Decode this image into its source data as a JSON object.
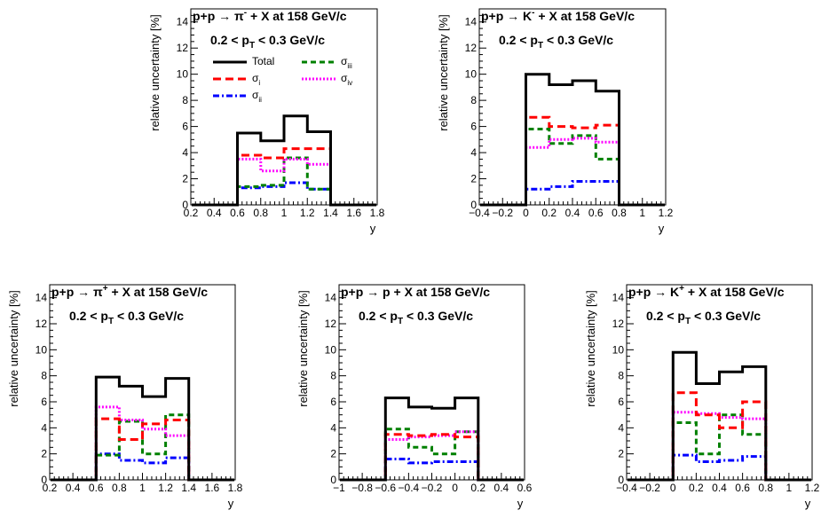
{
  "legend": {
    "total": "Total",
    "sigma_i": "σ_i",
    "sigma_ii": "σ_ii",
    "sigma_iii": "σ_iii",
    "sigma_iv": "σ_iv"
  },
  "colors": {
    "total": "#000000",
    "sigma_i": "#ff0000",
    "sigma_ii": "#0000ff",
    "sigma_iii": "#008000",
    "sigma_iv": "#ff00ff"
  },
  "chart_data": [
    {
      "type": "step",
      "title_parts": {
        "pre": "p+p  → π",
        "sup": "-",
        "post": " + X at 158 GeV/c"
      },
      "subtitle_parts": {
        "pre": "0.2 < p",
        "sub": "T",
        "post": " < 0.3  GeV/c"
      },
      "xlabel": "y",
      "ylabel": "relative uncertainty [%]",
      "xlim": [
        0.2,
        1.8
      ],
      "ylim": [
        0,
        15
      ],
      "xticks": [
        0.2,
        0.4,
        0.6,
        0.8,
        1,
        1.2,
        1.4,
        1.6,
        1.8
      ],
      "xtick_labels": [
        "0.2",
        "0.4",
        "0.6",
        "0.8",
        "1",
        "1.2",
        "1.4",
        "1.6",
        "1.8"
      ],
      "yticks": [
        0,
        2,
        4,
        6,
        8,
        10,
        12,
        14
      ],
      "ytick_labels": [
        "0",
        "2",
        "4",
        "6",
        "8",
        "10",
        "12",
        "14"
      ],
      "bin_edges": [
        0.6,
        0.8,
        1.0,
        1.2,
        1.4
      ],
      "legend_shown": true,
      "series": [
        {
          "key": "total",
          "values": [
            5.5,
            4.9,
            6.8,
            5.6
          ]
        },
        {
          "key": "sigma_i",
          "values": [
            3.8,
            3.6,
            4.3,
            4.3
          ]
        },
        {
          "key": "sigma_ii",
          "values": [
            1.3,
            1.4,
            1.7,
            1.2
          ]
        },
        {
          "key": "sigma_iii",
          "values": [
            1.4,
            1.5,
            3.6,
            1.2
          ]
        },
        {
          "key": "sigma_iv",
          "values": [
            3.5,
            2.6,
            3.5,
            3.1
          ]
        }
      ]
    },
    {
      "type": "step",
      "title_parts": {
        "pre": "p+p  → K",
        "sup": "-",
        "post": " + X at 158 GeV/c"
      },
      "subtitle_parts": {
        "pre": "0.2 < p",
        "sub": "T",
        "post": " < 0.3  GeV/c"
      },
      "xlabel": "y",
      "ylabel": "relative uncertainty [%]",
      "xlim": [
        -0.4,
        1.2
      ],
      "ylim": [
        0,
        15
      ],
      "xticks": [
        -0.4,
        -0.2,
        0,
        0.2,
        0.4,
        0.6,
        0.8,
        1,
        1.2
      ],
      "xtick_labels": [
        "−0.4",
        "−0.2",
        "0",
        "0.2",
        "0.4",
        "0.6",
        "0.8",
        "1",
        "1.2"
      ],
      "yticks": [
        0,
        2,
        4,
        6,
        8,
        10,
        12,
        14
      ],
      "ytick_labels": [
        "0",
        "2",
        "4",
        "6",
        "8",
        "10",
        "12",
        "14"
      ],
      "bin_edges": [
        0.0,
        0.2,
        0.4,
        0.6,
        0.8
      ],
      "legend_shown": false,
      "series": [
        {
          "key": "total",
          "values": [
            10.0,
            9.2,
            9.5,
            8.7
          ]
        },
        {
          "key": "sigma_i",
          "values": [
            6.7,
            6.0,
            5.9,
            6.1
          ]
        },
        {
          "key": "sigma_ii",
          "values": [
            1.2,
            1.4,
            1.8,
            1.8
          ]
        },
        {
          "key": "sigma_iii",
          "values": [
            5.8,
            4.7,
            5.3,
            3.5
          ]
        },
        {
          "key": "sigma_iv",
          "values": [
            4.4,
            5.0,
            5.1,
            4.8
          ]
        }
      ]
    },
    {
      "type": "step",
      "title_parts": {
        "pre": "p+p  → π",
        "sup": "+",
        "post": " + X at 158 GeV/c"
      },
      "subtitle_parts": {
        "pre": "0.2 < p",
        "sub": "T",
        "post": " < 0.3  GeV/c"
      },
      "xlabel": "y",
      "ylabel": "relative uncertainty [%]",
      "xlim": [
        0.2,
        1.8
      ],
      "ylim": [
        0,
        15
      ],
      "xticks": [
        0.2,
        0.4,
        0.6,
        0.8,
        1,
        1.2,
        1.4,
        1.6,
        1.8
      ],
      "xtick_labels": [
        "0.2",
        "0.4",
        "0.6",
        "0.8",
        "1",
        "1.2",
        "1.4",
        "1.6",
        "1.8"
      ],
      "yticks": [
        0,
        2,
        4,
        6,
        8,
        10,
        12,
        14
      ],
      "ytick_labels": [
        "0",
        "2",
        "4",
        "6",
        "8",
        "10",
        "12",
        "14"
      ],
      "bin_edges": [
        0.6,
        0.8,
        1.0,
        1.2,
        1.4
      ],
      "legend_shown": false,
      "series": [
        {
          "key": "total",
          "values": [
            7.9,
            7.2,
            6.4,
            7.8
          ]
        },
        {
          "key": "sigma_i",
          "values": [
            4.7,
            3.1,
            4.3,
            4.6
          ]
        },
        {
          "key": "sigma_ii",
          "values": [
            2.0,
            1.5,
            1.3,
            1.7
          ]
        },
        {
          "key": "sigma_iii",
          "values": [
            1.9,
            4.5,
            2.0,
            5.0
          ]
        },
        {
          "key": "sigma_iv",
          "values": [
            5.6,
            4.6,
            3.9,
            3.4
          ]
        }
      ]
    },
    {
      "type": "step",
      "title_parts": {
        "pre": "p+p  → p + X at 158 GeV/c",
        "sup": "",
        "post": ""
      },
      "subtitle_parts": {
        "pre": "0.2 < p",
        "sub": "T",
        "post": " < 0.3  GeV/c"
      },
      "xlabel": "y",
      "ylabel": "relative uncertainty [%]",
      "xlim": [
        -1.0,
        0.6
      ],
      "ylim": [
        0,
        15
      ],
      "xticks": [
        -1,
        -0.8,
        -0.6,
        -0.4,
        -0.2,
        0,
        0.2,
        0.4,
        0.6
      ],
      "xtick_labels": [
        "−1",
        "−0.8",
        "−0.6",
        "−0.4",
        "−0.2",
        "0",
        "0.2",
        "0.4",
        "0.6"
      ],
      "yticks": [
        0,
        2,
        4,
        6,
        8,
        10,
        12,
        14
      ],
      "ytick_labels": [
        "0",
        "2",
        "4",
        "6",
        "8",
        "10",
        "12",
        "14"
      ],
      "bin_edges": [
        -0.6,
        -0.4,
        -0.2,
        0.0,
        0.2
      ],
      "legend_shown": false,
      "series": [
        {
          "key": "total",
          "values": [
            6.3,
            5.6,
            5.5,
            6.3
          ]
        },
        {
          "key": "sigma_i",
          "values": [
            3.5,
            3.4,
            3.5,
            3.3
          ]
        },
        {
          "key": "sigma_ii",
          "values": [
            1.6,
            1.3,
            1.4,
            1.4
          ]
        },
        {
          "key": "sigma_iii",
          "values": [
            3.9,
            2.5,
            2.0,
            3.7
          ]
        },
        {
          "key": "sigma_iv",
          "values": [
            3.1,
            3.3,
            3.4,
            3.7
          ]
        }
      ]
    },
    {
      "type": "step",
      "title_parts": {
        "pre": "p+p  → K",
        "sup": "+",
        "post": " + X at 158 GeV/c"
      },
      "subtitle_parts": {
        "pre": "0.2 < p",
        "sub": "T",
        "post": " < 0.3  GeV/c"
      },
      "xlabel": "y",
      "ylabel": "relative uncertainty [%]",
      "xlim": [
        -0.4,
        1.2
      ],
      "ylim": [
        0,
        15
      ],
      "xticks": [
        -0.4,
        -0.2,
        0,
        0.2,
        0.4,
        0.6,
        0.8,
        1,
        1.2
      ],
      "xtick_labels": [
        "−0.4",
        "−0.2",
        "0",
        "0.2",
        "0.4",
        "0.6",
        "0.8",
        "1",
        "1.2"
      ],
      "yticks": [
        0,
        2,
        4,
        6,
        8,
        10,
        12,
        14
      ],
      "ytick_labels": [
        "0",
        "2",
        "4",
        "6",
        "8",
        "10",
        "12",
        "14"
      ],
      "bin_edges": [
        0.0,
        0.2,
        0.4,
        0.6,
        0.8
      ],
      "legend_shown": false,
      "series": [
        {
          "key": "total",
          "values": [
            9.8,
            7.4,
            8.3,
            8.7
          ]
        },
        {
          "key": "sigma_i",
          "values": [
            6.7,
            5.0,
            4.0,
            6.0
          ]
        },
        {
          "key": "sigma_ii",
          "values": [
            1.9,
            1.4,
            1.5,
            1.8
          ]
        },
        {
          "key": "sigma_iii",
          "values": [
            4.4,
            2.0,
            5.0,
            3.5
          ]
        },
        {
          "key": "sigma_iv",
          "values": [
            5.2,
            5.1,
            4.8,
            4.7
          ]
        }
      ]
    }
  ]
}
